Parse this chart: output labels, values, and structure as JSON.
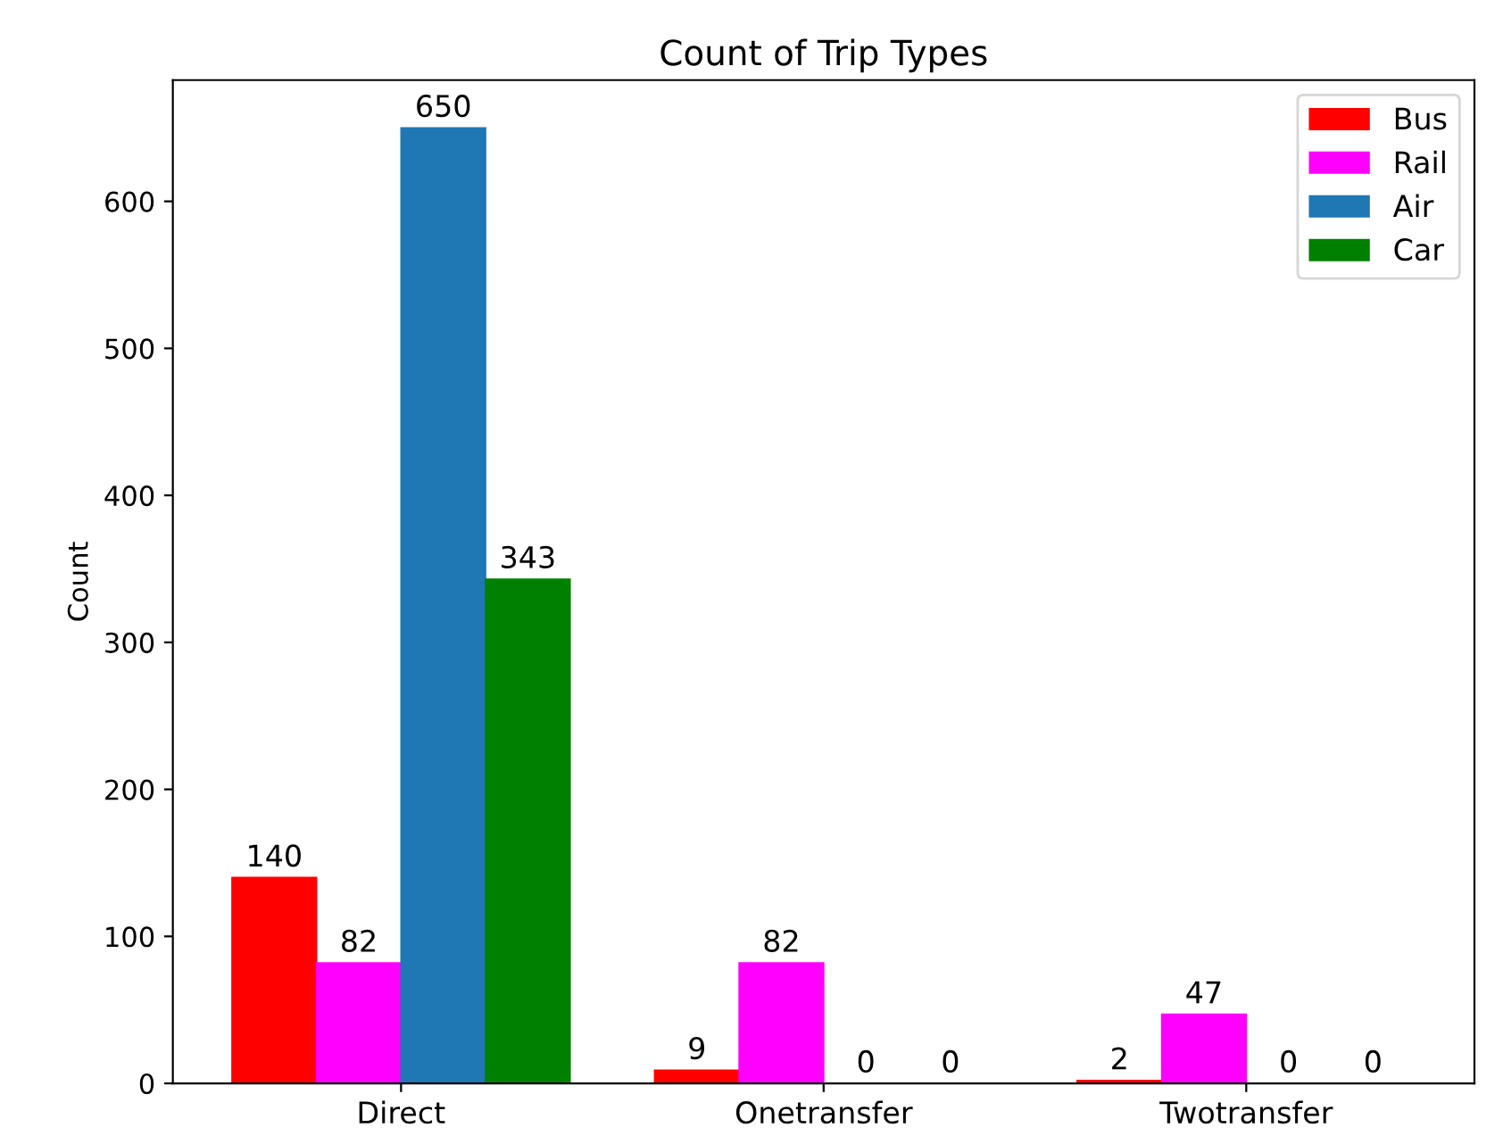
{
  "chart_data": {
    "type": "bar",
    "title": "Count of Trip Types",
    "ylabel": "Count",
    "categories": [
      "Direct",
      "Onetransfer",
      "Twotransfer"
    ],
    "series": [
      {
        "name": "Bus",
        "color": "#ff0000",
        "values": [
          140,
          9,
          2
        ]
      },
      {
        "name": "Rail",
        "color": "#ff00ff",
        "values": [
          82,
          82,
          47
        ]
      },
      {
        "name": "Air",
        "color": "#1f77b4",
        "values": [
          650,
          0,
          0
        ]
      },
      {
        "name": "Car",
        "color": "#008000",
        "values": [
          343,
          0,
          0
        ]
      }
    ],
    "ylim": [
      0,
      682.5
    ],
    "yticks": [
      0,
      100,
      200,
      300,
      400,
      500,
      600
    ],
    "data_labels": true,
    "legend": "top right",
    "grid": false
  }
}
